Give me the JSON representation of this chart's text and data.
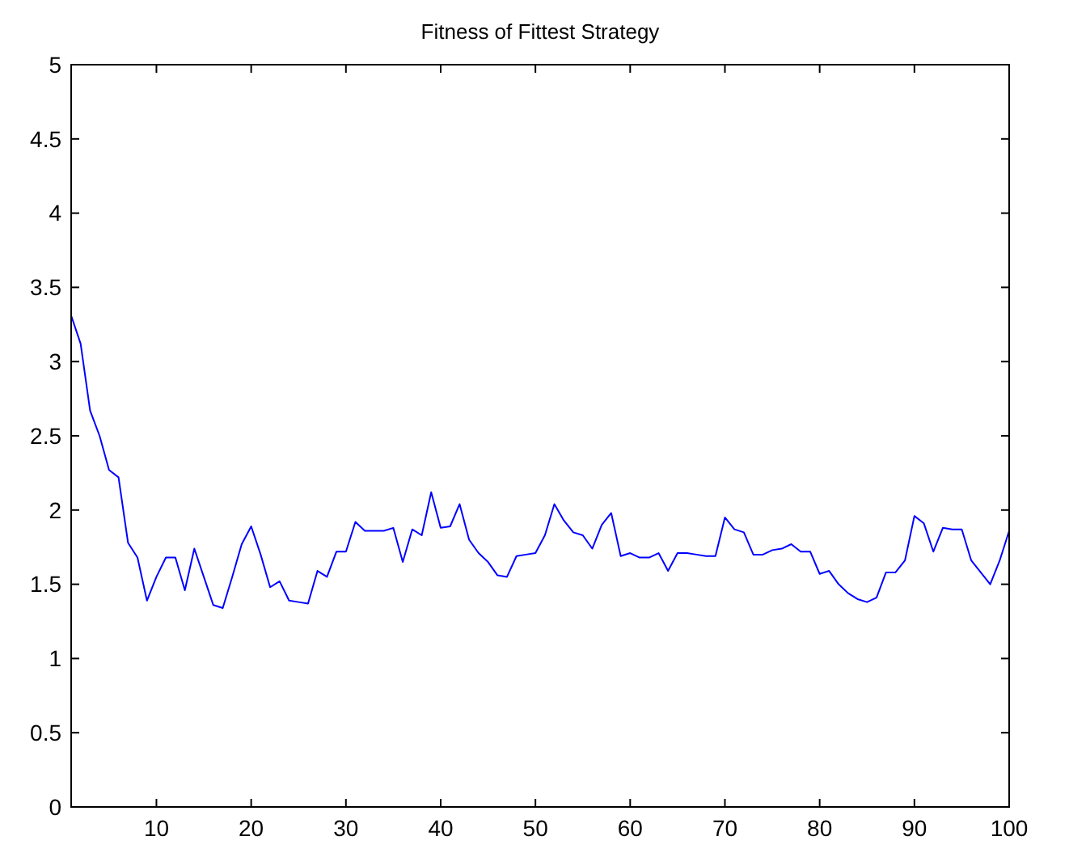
{
  "chart_data": {
    "type": "line",
    "title": "Fitness of Fittest Strategy",
    "x": [
      1,
      2,
      3,
      4,
      5,
      6,
      7,
      8,
      9,
      10,
      11,
      12,
      13,
      14,
      15,
      16,
      17,
      18,
      19,
      20,
      21,
      22,
      23,
      24,
      25,
      26,
      27,
      28,
      29,
      30,
      31,
      32,
      33,
      34,
      35,
      36,
      37,
      38,
      39,
      40,
      41,
      42,
      43,
      44,
      45,
      46,
      47,
      48,
      49,
      50,
      51,
      52,
      53,
      54,
      55,
      56,
      57,
      58,
      59,
      60,
      61,
      62,
      63,
      64,
      65,
      66,
      67,
      68,
      69,
      70,
      71,
      72,
      73,
      74,
      75,
      76,
      77,
      78,
      79,
      80,
      81,
      82,
      83,
      84,
      85,
      86,
      87,
      88,
      89,
      90,
      91,
      92,
      93,
      94,
      95,
      96,
      97,
      98,
      99,
      100
    ],
    "series": [
      {
        "color": "#0000ff",
        "values": [
          3.31,
          3.12,
          2.67,
          2.5,
          2.27,
          2.22,
          1.78,
          1.68,
          1.39,
          1.55,
          1.68,
          1.68,
          1.46,
          1.74,
          1.55,
          1.36,
          1.34,
          1.55,
          1.77,
          1.89,
          1.7,
          1.48,
          1.52,
          1.39,
          1.38,
          1.37,
          1.59,
          1.55,
          1.72,
          1.72,
          1.92,
          1.86,
          1.86,
          1.86,
          1.88,
          1.65,
          1.87,
          1.83,
          2.12,
          1.88,
          1.89,
          2.04,
          1.8,
          1.71,
          1.65,
          1.56,
          1.55,
          1.69,
          1.7,
          1.71,
          1.83,
          2.04,
          1.93,
          1.85,
          1.83,
          1.74,
          1.9,
          1.98,
          1.69,
          1.71,
          1.68,
          1.68,
          1.71,
          1.59,
          1.71,
          1.71,
          1.7,
          1.69,
          1.69,
          1.95,
          1.87,
          1.85,
          1.7,
          1.7,
          1.73,
          1.74,
          1.77,
          1.72,
          1.72,
          1.57,
          1.59,
          1.5,
          1.44,
          1.4,
          1.38,
          1.41,
          1.58,
          1.58,
          1.66,
          1.96,
          1.91,
          1.72,
          1.88,
          1.87,
          1.87,
          1.66,
          1.58,
          1.5,
          1.66,
          1.86
        ]
      }
    ],
    "xlim": [
      1,
      100
    ],
    "xticks": [
      10,
      20,
      30,
      40,
      50,
      60,
      70,
      80,
      90,
      100
    ],
    "ylim": [
      0,
      5
    ],
    "yticks": [
      0,
      0.5,
      1,
      1.5,
      2,
      2.5,
      3,
      3.5,
      4,
      4.5,
      5
    ],
    "line_style": "solid"
  }
}
